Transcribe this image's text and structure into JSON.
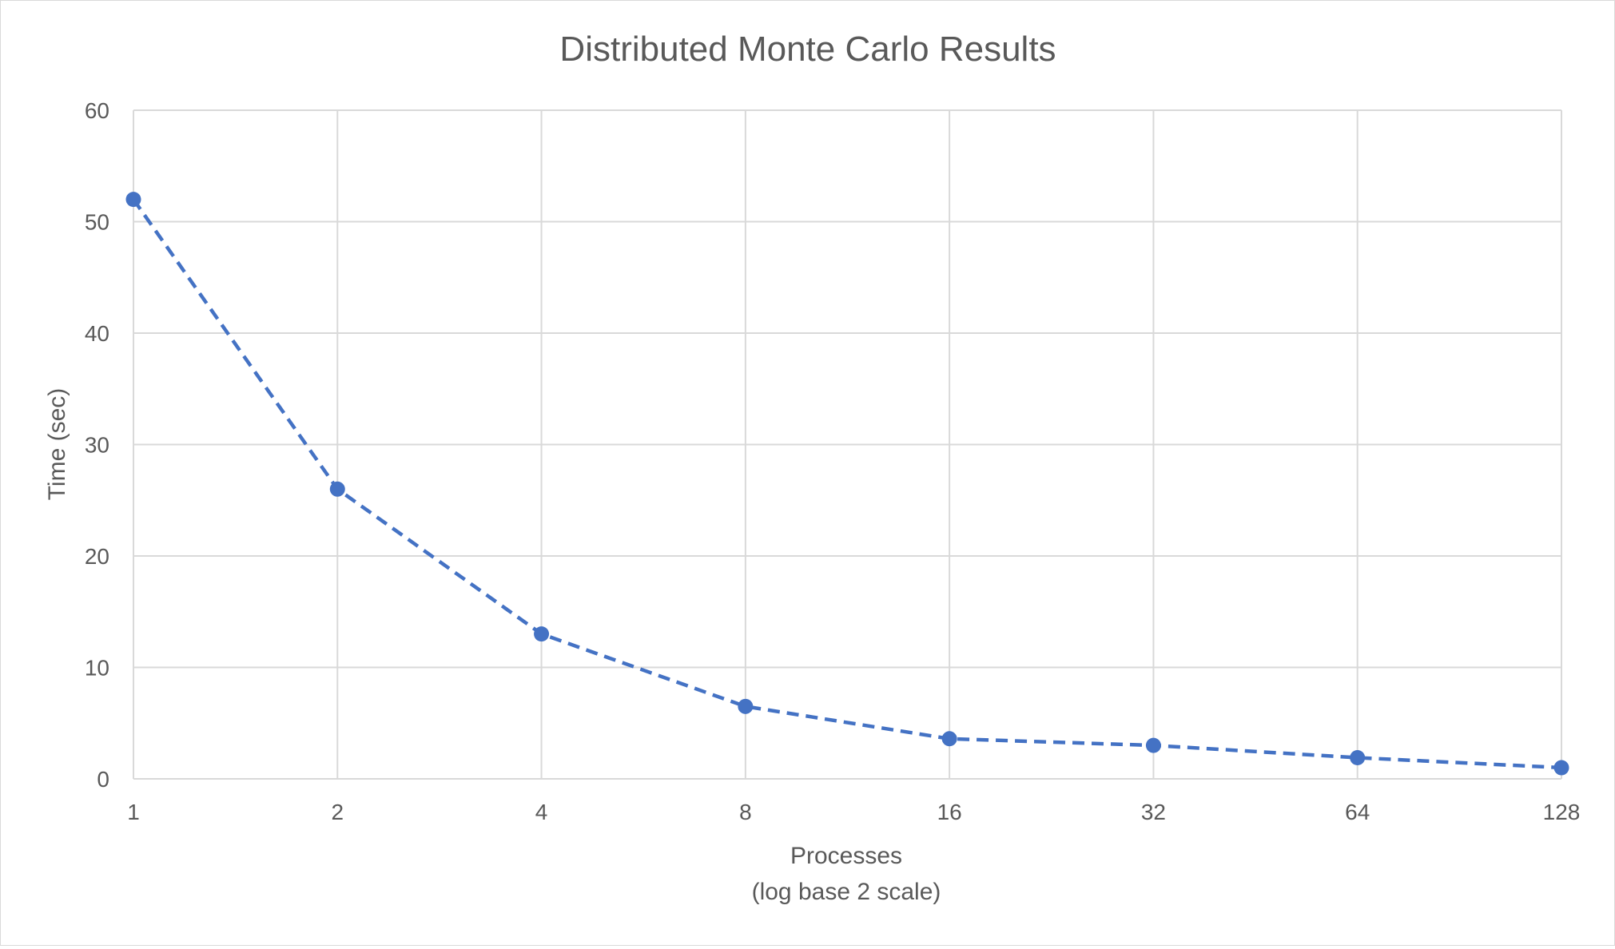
{
  "chart_data": {
    "type": "line",
    "title": "Distributed Monte Carlo Results",
    "xlabel": "Processes",
    "xlabel_note": "(log base 2 scale)",
    "ylabel": "Time (sec)",
    "x_scale": "log2",
    "x": [
      1,
      2,
      4,
      8,
      16,
      32,
      64,
      128
    ],
    "x_tick_labels": [
      "1",
      "2",
      "4",
      "8",
      "16",
      "32",
      "64",
      "128"
    ],
    "y_ticks": [
      0,
      10,
      20,
      30,
      40,
      50,
      60
    ],
    "ylim": [
      0,
      60
    ],
    "grid": true,
    "legend": "none",
    "series": [
      {
        "values": [
          52,
          26,
          13,
          6.5,
          3.6,
          3.0,
          1.9,
          1.0
        ],
        "line_style": "dashed",
        "marker": "circle",
        "color": "#4472c4"
      }
    ]
  },
  "colors": {
    "series": "#4472c4",
    "grid": "#d9d9d9",
    "text": "#595959",
    "title": "#595959"
  }
}
